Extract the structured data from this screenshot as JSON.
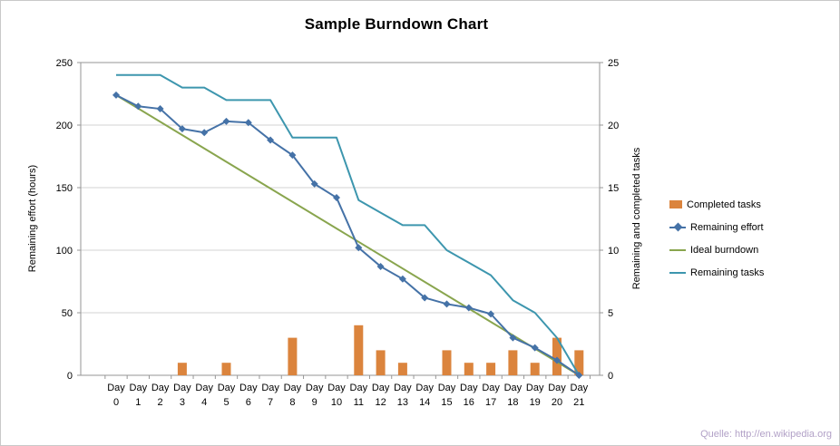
{
  "chart_data": {
    "type": "combo (bar + line, dual axis)",
    "title": "Sample Burndown Chart",
    "categories": [
      "Day 0",
      "Day 1",
      "Day 2",
      "Day 3",
      "Day 4",
      "Day 5",
      "Day 6",
      "Day 7",
      "Day 8",
      "Day 9",
      "Day 10",
      "Day 11",
      "Day 12",
      "Day 13",
      "Day 14",
      "Day 15",
      "Day 16",
      "Day 17",
      "Day 18",
      "Day 19",
      "Day 20",
      "Day 21"
    ],
    "left_axis": {
      "label": "Remaining effort (hours)",
      "min": 0,
      "max": 250,
      "ticks": [
        0,
        50,
        100,
        150,
        200,
        250
      ]
    },
    "right_axis": {
      "label": "Remaining and completed tasks",
      "min": 0,
      "max": 25,
      "ticks": [
        0,
        5,
        10,
        15,
        20,
        25
      ]
    },
    "grid": "horizontal",
    "legend_position": "right",
    "series": [
      {
        "name": "Completed tasks",
        "type": "bar",
        "axis": "right",
        "color": "#DB843D",
        "z": 1,
        "values": [
          0,
          0,
          0,
          1,
          0,
          1,
          0,
          0,
          3,
          0,
          0,
          4,
          2,
          1,
          0,
          2,
          1,
          1,
          2,
          1,
          3,
          2
        ]
      },
      {
        "name": "Remaining effort",
        "type": "line",
        "marker": "diamond",
        "axis": "left",
        "color": "#4572A7",
        "z": 4,
        "values": [
          224,
          215,
          213,
          197,
          194,
          203,
          202,
          188,
          176,
          153,
          142,
          102,
          87,
          77,
          62,
          57,
          54,
          49,
          30,
          22,
          12,
          0
        ]
      },
      {
        "name": "Ideal burndown",
        "type": "line",
        "axis": "left",
        "color": "#89A54E",
        "z": 2,
        "x": [
          0,
          21
        ],
        "values": [
          224,
          0
        ]
      },
      {
        "name": "Remaining tasks",
        "type": "line",
        "axis": "right",
        "color": "#3D96AE",
        "z": 3,
        "values": [
          24,
          24,
          24,
          23,
          23,
          22,
          22,
          22,
          19,
          19,
          19,
          14,
          13,
          12,
          12,
          10,
          9,
          8,
          6,
          5,
          3,
          0
        ]
      }
    ]
  },
  "footer": {
    "source": "Quelle: http://en.wikipedia.org",
    "color": "#B2A1C7"
  }
}
